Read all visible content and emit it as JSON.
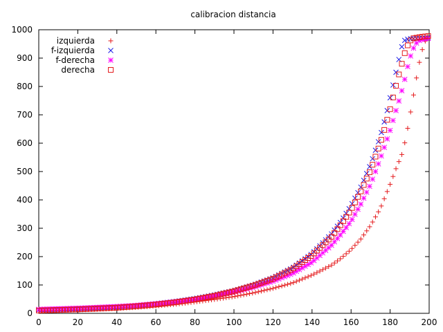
{
  "chart_data": {
    "type": "scatter",
    "title": "calibracion distancia",
    "xlabel": "",
    "ylabel": "",
    "xlim": [
      0,
      200
    ],
    "ylim": [
      0,
      1000
    ],
    "x_ticks": [
      "0",
      "20",
      "40",
      "60",
      "80",
      "100",
      "120",
      "140",
      "160",
      "180",
      "200"
    ],
    "y_ticks": [
      "0",
      "100",
      "200",
      "300",
      "400",
      "500",
      "600",
      "700",
      "800",
      "900",
      "1000"
    ],
    "grid": false,
    "legend_position": "top-left",
    "series": [
      {
        "name": "izquierda",
        "marker": "plus",
        "color": "#e41a1c",
        "x": [
          0,
          10,
          20,
          30,
          40,
          50,
          60,
          70,
          80,
          90,
          100,
          110,
          120,
          130,
          140,
          150,
          155,
          160,
          165,
          170,
          175,
          180,
          183,
          186,
          188,
          190,
          192,
          194,
          196,
          198,
          200
        ],
        "y": [
          8,
          10,
          12,
          14,
          17,
          21,
          26,
          32,
          40,
          49,
          59,
          72,
          88,
          107,
          135,
          170,
          195,
          225,
          262,
          310,
          370,
          455,
          510,
          560,
          615,
          690,
          770,
          850,
          920,
          960,
          975
        ]
      },
      {
        "name": "f-izquierda",
        "marker": "cross",
        "color": "#1a1ae6",
        "x": [
          0,
          10,
          20,
          30,
          40,
          50,
          60,
          70,
          80,
          90,
          100,
          110,
          120,
          130,
          140,
          150,
          155,
          160,
          165,
          170,
          175,
          178,
          180,
          182,
          184,
          186,
          187,
          188,
          190,
          195,
          200
        ],
        "y": [
          12,
          14,
          16,
          19,
          22,
          27,
          34,
          42,
          52,
          65,
          80,
          100,
          125,
          160,
          210,
          280,
          325,
          380,
          445,
          525,
          625,
          700,
          760,
          820,
          880,
          940,
          960,
          965,
          968,
          970,
          972
        ]
      },
      {
        "name": "f-derecha",
        "marker": "star",
        "color": "#ff00ff",
        "x": [
          0,
          10,
          20,
          30,
          40,
          50,
          60,
          70,
          80,
          90,
          100,
          110,
          120,
          130,
          140,
          150,
          155,
          160,
          165,
          170,
          175,
          180,
          183,
          185,
          187,
          189,
          191,
          193,
          195,
          198,
          200
        ],
        "y": [
          14,
          16,
          18,
          21,
          24,
          28,
          34,
          41,
          50,
          61,
          75,
          92,
          113,
          140,
          180,
          240,
          280,
          325,
          385,
          455,
          545,
          645,
          715,
          760,
          810,
          870,
          920,
          950,
          962,
          968,
          970
        ]
      },
      {
        "name": "derecha",
        "marker": "square",
        "color": "#e41a1c",
        "x": [
          0,
          10,
          20,
          30,
          40,
          50,
          60,
          70,
          80,
          90,
          100,
          110,
          120,
          130,
          140,
          150,
          155,
          160,
          165,
          170,
          175,
          178,
          180,
          182,
          184,
          186,
          188,
          190,
          192,
          196,
          200
        ],
        "y": [
          10,
          12,
          14,
          17,
          20,
          25,
          31,
          39,
          49,
          62,
          78,
          98,
          122,
          156,
          205,
          270,
          315,
          365,
          430,
          505,
          600,
          670,
          720,
          775,
          830,
          880,
          930,
          960,
          970,
          975,
          978
        ]
      }
    ]
  }
}
